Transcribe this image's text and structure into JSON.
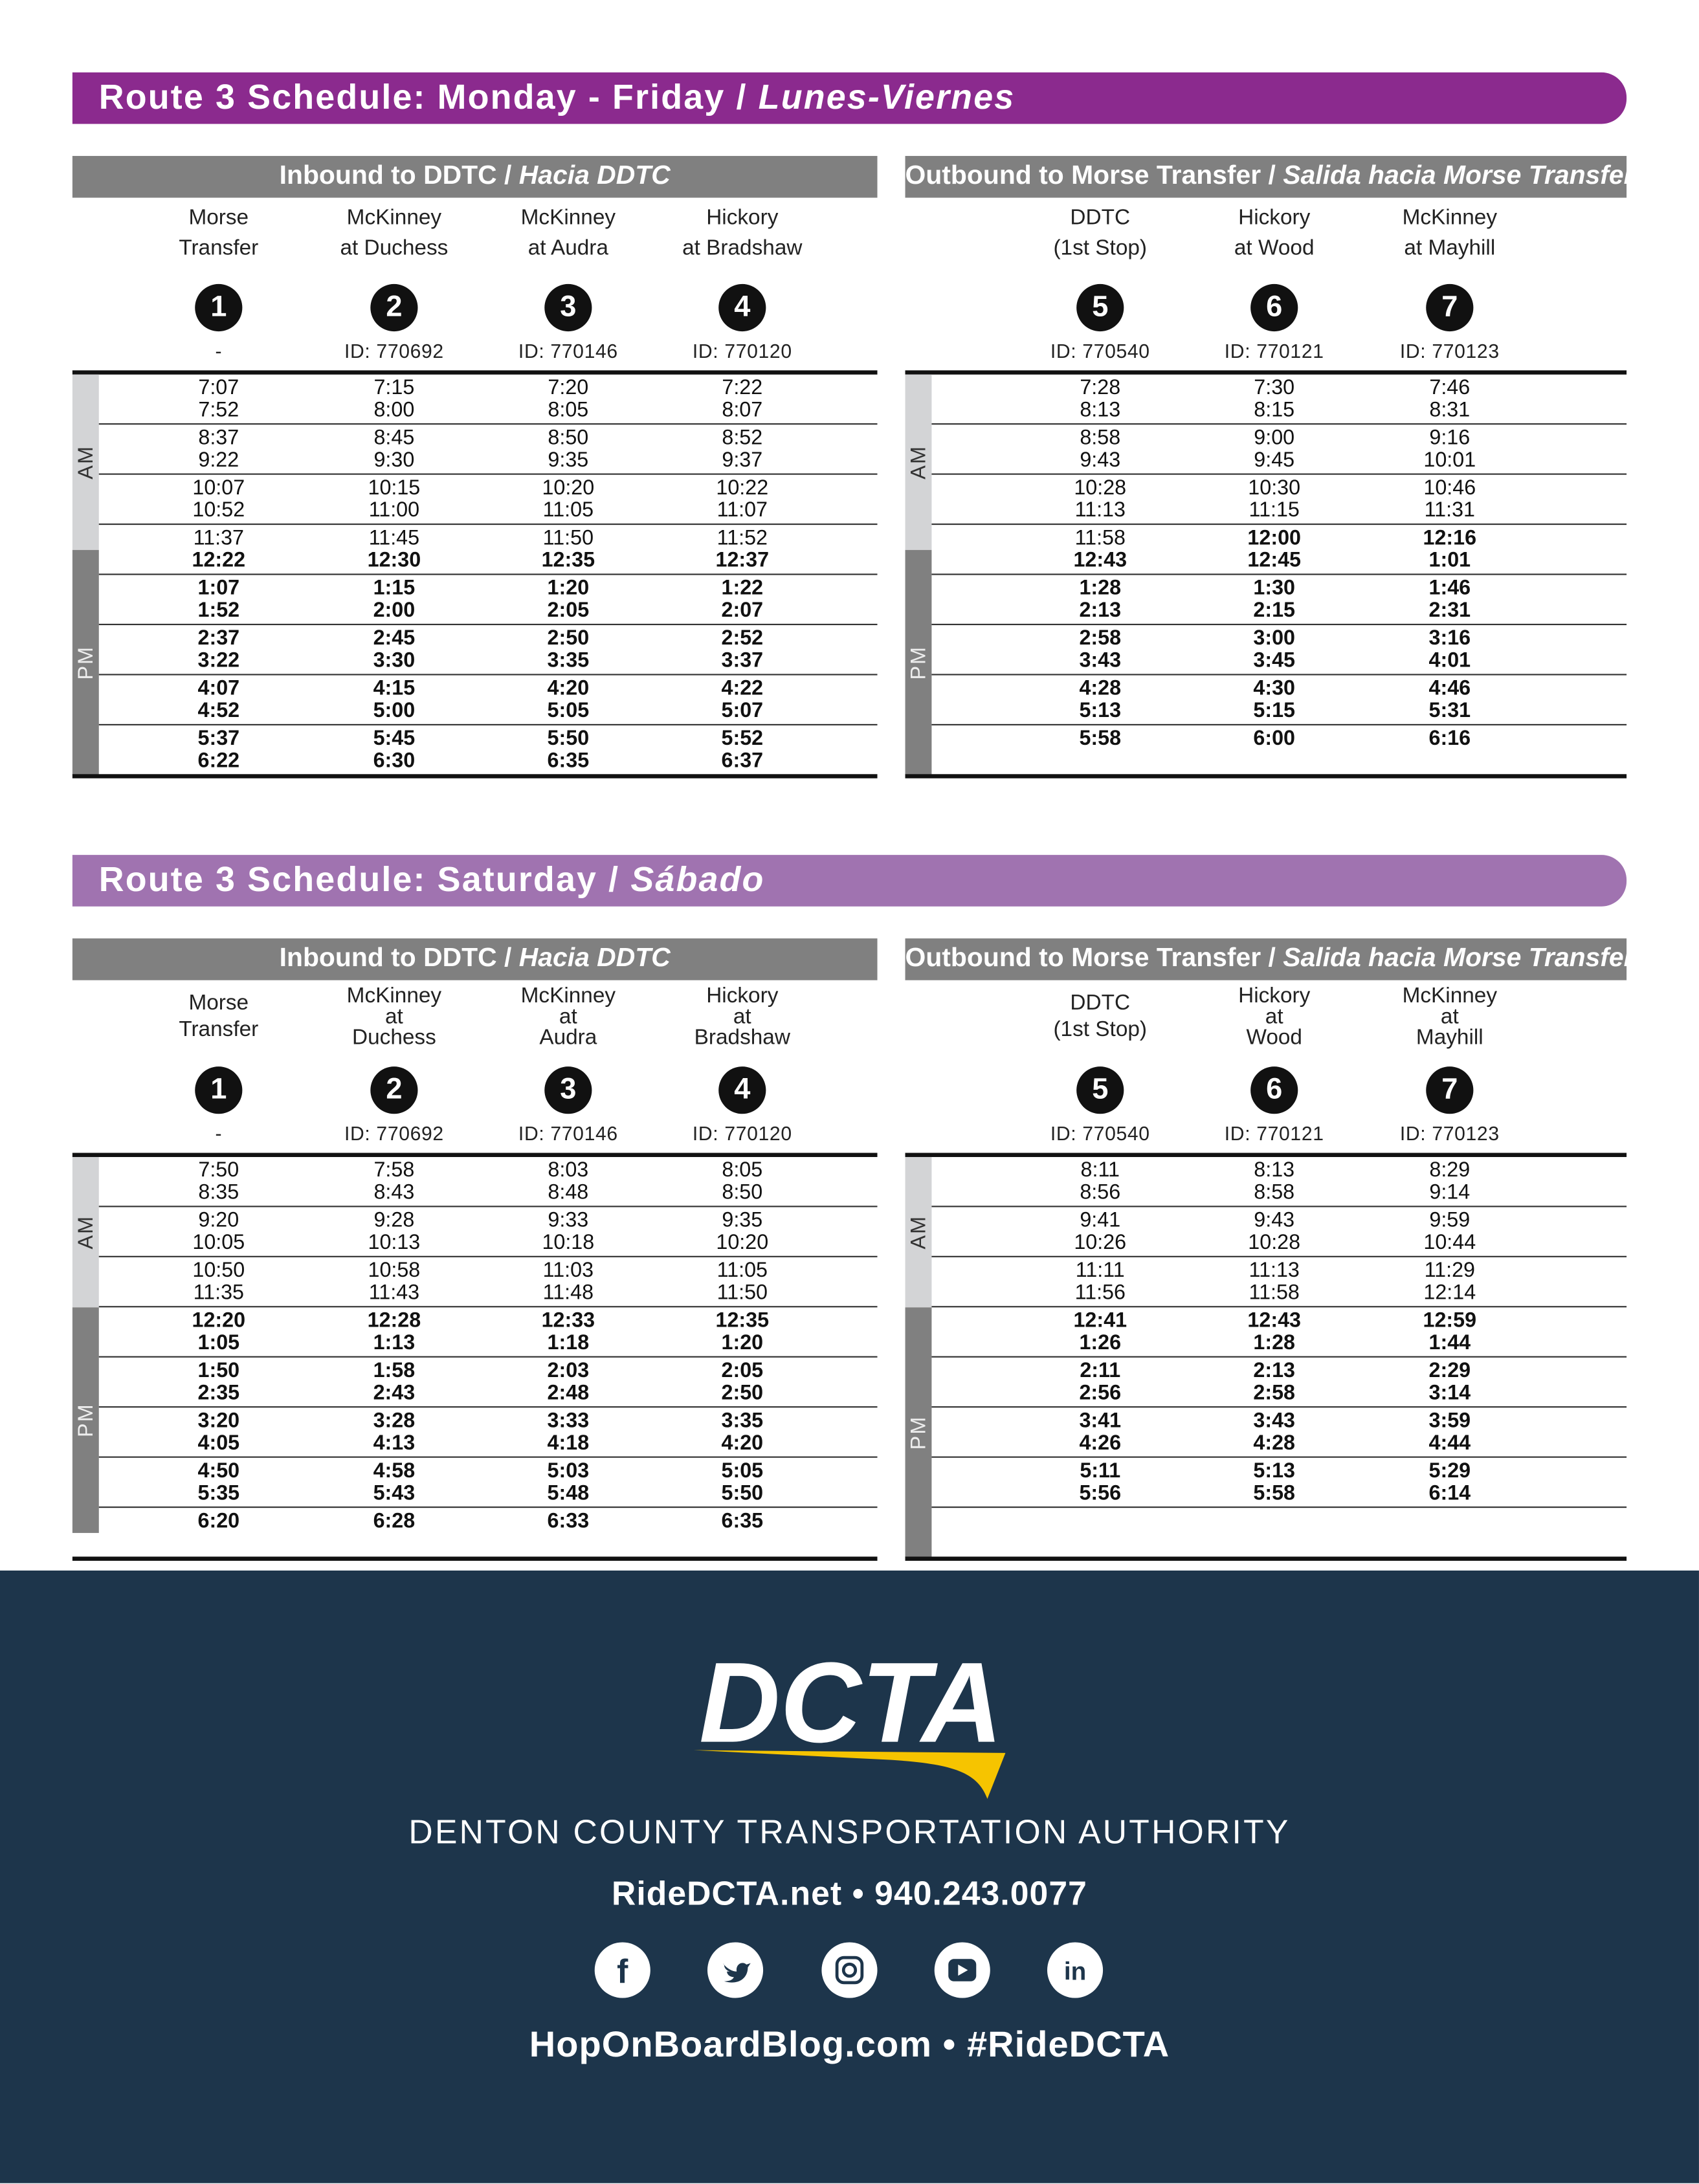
{
  "colors": {
    "weekday_banner": "#8b2a8e",
    "saturday_banner": "#a073b0",
    "header_bar": "#808080",
    "am_strip": "#d3d4d6",
    "pm_strip": "#808080",
    "footer_bg": "#1d354b",
    "logo_accent": "#f6c400"
  },
  "schedules": [
    {
      "title": "Route 3 Schedule: Monday - Friday / ",
      "title_italic": "Lunes-Viernes",
      "inbound": {
        "header": "Inbound to DDTC  /  ",
        "header_italic": "Hacia DDTC",
        "stops": [
          {
            "name_lines": [
              "Morse",
              "Transfer"
            ],
            "number": "1",
            "id": "-"
          },
          {
            "name_lines": [
              "McKinney",
              "at Duchess"
            ],
            "number": "2",
            "id": "ID: 770692"
          },
          {
            "name_lines": [
              "McKinney",
              "at Audra"
            ],
            "number": "3",
            "id": "ID: 770146"
          },
          {
            "name_lines": [
              "Hickory",
              "at Bradshaw"
            ],
            "number": "4",
            "id": "ID: 770120"
          }
        ],
        "trips": [
          {
            "period": "AM",
            "times": [
              "7:07",
              "7:15",
              "7:20",
              "7:22"
            ]
          },
          {
            "period": "AM",
            "times": [
              "7:52",
              "8:00",
              "8:05",
              "8:07"
            ]
          },
          {
            "period": "AM",
            "times": [
              "8:37",
              "8:45",
              "8:50",
              "8:52"
            ]
          },
          {
            "period": "AM",
            "times": [
              "9:22",
              "9:30",
              "9:35",
              "9:37"
            ]
          },
          {
            "period": "AM",
            "times": [
              "10:07",
              "10:15",
              "10:20",
              "10:22"
            ]
          },
          {
            "period": "AM",
            "times": [
              "10:52",
              "11:00",
              "11:05",
              "11:07"
            ]
          },
          {
            "period": "AM",
            "times": [
              "11:37",
              "11:45",
              "11:50",
              "11:52"
            ]
          },
          {
            "period": "PM",
            "times": [
              "12:22",
              "12:30",
              "12:35",
              "12:37"
            ]
          },
          {
            "period": "PM",
            "times": [
              "1:07",
              "1:15",
              "1:20",
              "1:22"
            ]
          },
          {
            "period": "PM",
            "times": [
              "1:52",
              "2:00",
              "2:05",
              "2:07"
            ]
          },
          {
            "period": "PM",
            "times": [
              "2:37",
              "2:45",
              "2:50",
              "2:52"
            ]
          },
          {
            "period": "PM",
            "times": [
              "3:22",
              "3:30",
              "3:35",
              "3:37"
            ]
          },
          {
            "period": "PM",
            "times": [
              "4:07",
              "4:15",
              "4:20",
              "4:22"
            ]
          },
          {
            "period": "PM",
            "times": [
              "4:52",
              "5:00",
              "5:05",
              "5:07"
            ]
          },
          {
            "period": "PM",
            "times": [
              "5:37",
              "5:45",
              "5:50",
              "5:52"
            ]
          },
          {
            "period": "PM",
            "times": [
              "6:22",
              "6:30",
              "6:35",
              "6:37"
            ]
          }
        ]
      },
      "outbound": {
        "header": "Outbound to Morse Transfer / ",
        "header_italic": "Salida hacia Morse Transfer",
        "stops": [
          {
            "name_lines": [
              "DDTC",
              "(1st Stop)"
            ],
            "number": "5",
            "id": "ID: 770540"
          },
          {
            "name_lines": [
              "Hickory",
              "at Wood"
            ],
            "number": "6",
            "id": "ID: 770121"
          },
          {
            "name_lines": [
              "McKinney",
              "at Mayhill"
            ],
            "number": "7",
            "id": "ID: 770123"
          }
        ],
        "trips": [
          {
            "period": "AM",
            "times": [
              "7:28",
              "7:30",
              "7:46"
            ]
          },
          {
            "period": "AM",
            "times": [
              "8:13",
              "8:15",
              "8:31"
            ]
          },
          {
            "period": "AM",
            "times": [
              "8:58",
              "9:00",
              "9:16"
            ]
          },
          {
            "period": "AM",
            "times": [
              "9:43",
              "9:45",
              "10:01"
            ]
          },
          {
            "period": "AM",
            "times": [
              "10:28",
              "10:30",
              "10:46"
            ]
          },
          {
            "period": "AM",
            "times": [
              "11:13",
              "11:15",
              "11:31"
            ]
          },
          {
            "period": "AM",
            "times": [
              "11:58",
              "12:00",
              "12:16"
            ],
            "pm": [
              false,
              true,
              true
            ]
          },
          {
            "period": "PM",
            "times": [
              "12:43",
              "12:45",
              "1:01"
            ]
          },
          {
            "period": "PM",
            "times": [
              "1:28",
              "1:30",
              "1:46"
            ]
          },
          {
            "period": "PM",
            "times": [
              "2:13",
              "2:15",
              "2:31"
            ]
          },
          {
            "period": "PM",
            "times": [
              "2:58",
              "3:00",
              "3:16"
            ]
          },
          {
            "period": "PM",
            "times": [
              "3:43",
              "3:45",
              "4:01"
            ]
          },
          {
            "period": "PM",
            "times": [
              "4:28",
              "4:30",
              "4:46"
            ]
          },
          {
            "period": "PM",
            "times": [
              "5:13",
              "5:15",
              "5:31"
            ]
          },
          {
            "period": "PM",
            "times": [
              "5:58",
              "6:00",
              "6:16"
            ]
          }
        ]
      }
    },
    {
      "title": "Route 3 Schedule: Saturday / ",
      "title_italic": "Sábado",
      "inbound": {
        "header": "Inbound to DDTC  /  ",
        "header_italic": "Hacia DDTC",
        "stops": [
          {
            "name_lines": [
              "Morse",
              "Transfer"
            ],
            "number": "1",
            "id": "-"
          },
          {
            "name_lines": [
              "McKinney",
              "at",
              "Duchess"
            ],
            "number": "2",
            "id": "ID: 770692"
          },
          {
            "name_lines": [
              "McKinney",
              "at",
              "Audra"
            ],
            "number": "3",
            "id": "ID: 770146"
          },
          {
            "name_lines": [
              "Hickory",
              "at",
              "Bradshaw"
            ],
            "number": "4",
            "id": "ID: 770120"
          }
        ],
        "trips": [
          {
            "period": "AM",
            "times": [
              "7:50",
              "7:58",
              "8:03",
              "8:05"
            ]
          },
          {
            "period": "AM",
            "times": [
              "8:35",
              "8:43",
              "8:48",
              "8:50"
            ]
          },
          {
            "period": "AM",
            "times": [
              "9:20",
              "9:28",
              "9:33",
              "9:35"
            ]
          },
          {
            "period": "AM",
            "times": [
              "10:05",
              "10:13",
              "10:18",
              "10:20"
            ]
          },
          {
            "period": "AM",
            "times": [
              "10:50",
              "10:58",
              "11:03",
              "11:05"
            ]
          },
          {
            "period": "AM",
            "times": [
              "11:35",
              "11:43",
              "11:48",
              "11:50"
            ]
          },
          {
            "period": "PM",
            "times": [
              "12:20",
              "12:28",
              "12:33",
              "12:35"
            ]
          },
          {
            "period": "PM",
            "times": [
              "1:05",
              "1:13",
              "1:18",
              "1:20"
            ]
          },
          {
            "period": "PM",
            "times": [
              "1:50",
              "1:58",
              "2:03",
              "2:05"
            ]
          },
          {
            "period": "PM",
            "times": [
              "2:35",
              "2:43",
              "2:48",
              "2:50"
            ]
          },
          {
            "period": "PM",
            "times": [
              "3:20",
              "3:28",
              "3:33",
              "3:35"
            ]
          },
          {
            "period": "PM",
            "times": [
              "4:05",
              "4:13",
              "4:18",
              "4:20"
            ]
          },
          {
            "period": "PM",
            "times": [
              "4:50",
              "4:58",
              "5:03",
              "5:05"
            ]
          },
          {
            "period": "PM",
            "times": [
              "5:35",
              "5:43",
              "5:48",
              "5:50"
            ]
          },
          {
            "period": "PM",
            "times": [
              "6:20",
              "6:28",
              "6:33",
              "6:35"
            ]
          }
        ]
      },
      "outbound": {
        "header": "Outbound to Morse Transfer / ",
        "header_italic": "Salida hacia Morse Transfer",
        "stops": [
          {
            "name_lines": [
              "DDTC",
              "(1st Stop)"
            ],
            "number": "5",
            "id": "ID: 770540"
          },
          {
            "name_lines": [
              "Hickory",
              "at",
              "Wood"
            ],
            "number": "6",
            "id": "ID: 770121"
          },
          {
            "name_lines": [
              "McKinney",
              "at",
              "Mayhill"
            ],
            "number": "7",
            "id": "ID: 770123"
          }
        ],
        "trips": [
          {
            "period": "AM",
            "times": [
              "8:11",
              "8:13",
              "8:29"
            ]
          },
          {
            "period": "AM",
            "times": [
              "8:56",
              "8:58",
              "9:14"
            ]
          },
          {
            "period": "AM",
            "times": [
              "9:41",
              "9:43",
              "9:59"
            ]
          },
          {
            "period": "AM",
            "times": [
              "10:26",
              "10:28",
              "10:44"
            ]
          },
          {
            "period": "AM",
            "times": [
              "11:11",
              "11:13",
              "11:29"
            ]
          },
          {
            "period": "AM",
            "times": [
              "11:56",
              "11:58",
              "12:14"
            ]
          },
          {
            "period": "PM",
            "times": [
              "12:41",
              "12:43",
              "12:59"
            ]
          },
          {
            "period": "PM",
            "times": [
              "1:26",
              "1:28",
              "1:44"
            ]
          },
          {
            "period": "PM",
            "times": [
              "2:11",
              "2:13",
              "2:29"
            ]
          },
          {
            "period": "PM",
            "times": [
              "2:56",
              "2:58",
              "3:14"
            ]
          },
          {
            "period": "PM",
            "times": [
              "3:41",
              "3:43",
              "3:59"
            ]
          },
          {
            "period": "PM",
            "times": [
              "4:26",
              "4:28",
              "4:44"
            ]
          },
          {
            "period": "PM",
            "times": [
              "5:11",
              "5:13",
              "5:29"
            ]
          },
          {
            "period": "PM",
            "times": [
              "5:56",
              "5:58",
              "6:14"
            ]
          }
        ]
      }
    }
  ],
  "period_labels": {
    "am": "AM",
    "pm": "PM"
  },
  "footer": {
    "logo_text": "DCTA",
    "org_name": "DENTON COUNTY TRANSPORTATION AUTHORITY",
    "contact": "RideDCTA.net • 940.243.0077",
    "social_icons": [
      "facebook-icon",
      "twitter-icon",
      "instagram-icon",
      "youtube-icon",
      "linkedin-icon"
    ],
    "blog": "HopOnBoardBlog.com • #RideDCTA"
  }
}
